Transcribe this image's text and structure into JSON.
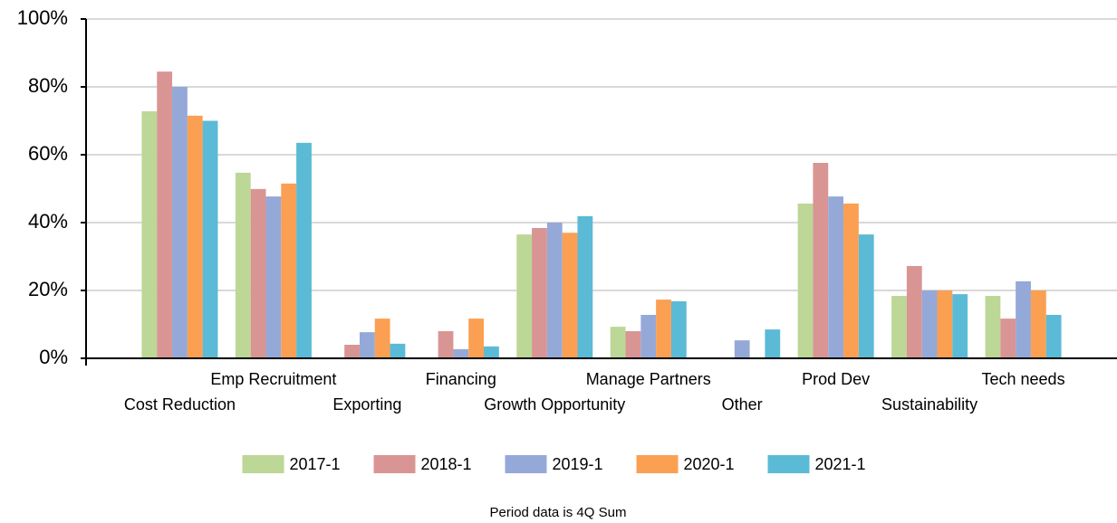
{
  "chart_data": {
    "type": "bar",
    "subtitle": "Period data is 4Q Sum",
    "categories": [
      "Cost Reduction",
      "Emp Recruitment",
      "Exporting",
      "Financing",
      "Growth Opportunity",
      "Manage Partners",
      "Other",
      "Prod Dev",
      "Sustainability",
      "Tech needs"
    ],
    "series": [
      {
        "name": "2017-1",
        "color": "#bcd796",
        "values": [
          72.8,
          54.7,
          0,
          0,
          36.5,
          9.3,
          0,
          45.6,
          18.4,
          18.4
        ]
      },
      {
        "name": "2018-1",
        "color": "#d99594",
        "values": [
          84.5,
          49.9,
          4,
          8,
          38.4,
          8,
          0,
          57.6,
          27.2,
          11.7
        ]
      },
      {
        "name": "2019-1",
        "color": "#95a9d8",
        "values": [
          80,
          47.7,
          7.7,
          2.7,
          40,
          12.8,
          5.3,
          47.7,
          20,
          22.7
        ]
      },
      {
        "name": "2020-1",
        "color": "#fb9f52",
        "values": [
          71.5,
          51.5,
          11.7,
          11.7,
          37,
          17.3,
          0,
          45.6,
          20,
          20
        ]
      },
      {
        "name": "2021-1",
        "color": "#5bbad6",
        "values": [
          70,
          63.5,
          4.3,
          3.5,
          41.9,
          16.8,
          8.5,
          36.5,
          18.9,
          12.8
        ]
      }
    ],
    "ylim": [
      0,
      100
    ],
    "yticks": [
      {
        "value": 0,
        "label": "0%"
      },
      {
        "value": 20,
        "label": "20%"
      },
      {
        "value": 40,
        "label": "40%"
      },
      {
        "value": 60,
        "label": "60%"
      },
      {
        "value": 80,
        "label": "80%"
      },
      {
        "value": 100,
        "label": "100%"
      }
    ],
    "grid": true
  }
}
